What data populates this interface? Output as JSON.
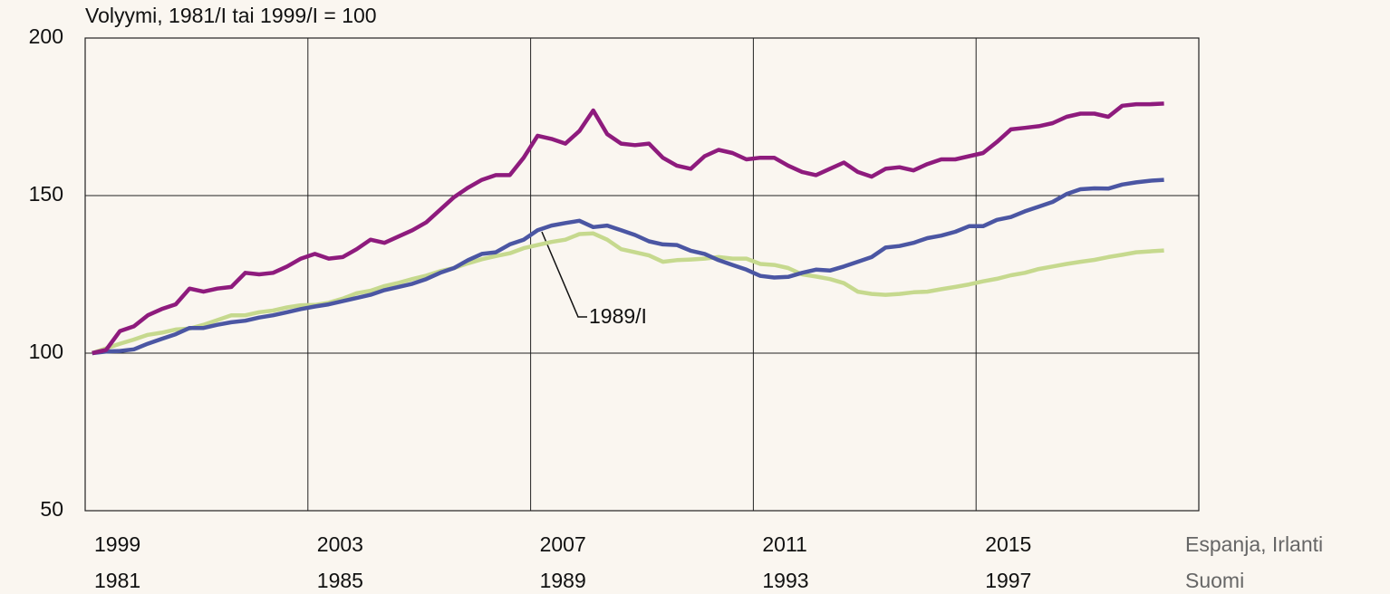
{
  "chart_data": {
    "type": "line",
    "title": "Volyymi, 1981/I tai 1999/I = 100",
    "annotation": "1989/I",
    "xlabel": "Espanja, Irlanti",
    "x2label": "Suomi",
    "x": [
      0,
      1,
      2,
      3,
      4,
      5,
      6,
      7,
      8,
      9,
      10,
      11,
      12,
      13,
      14,
      15,
      16,
      17,
      18,
      19,
      20,
      21,
      22,
      23,
      24,
      25,
      26,
      27,
      28,
      29,
      30,
      31,
      32,
      33,
      34,
      35,
      36,
      37,
      38,
      39,
      40,
      41,
      42,
      43,
      44,
      45,
      46,
      47,
      48,
      49,
      50,
      51,
      52,
      53,
      54,
      55,
      56,
      57,
      58,
      59,
      60,
      61,
      62,
      63,
      64,
      65,
      66,
      67,
      68,
      69,
      70,
      71,
      72,
      73,
      74,
      75,
      76,
      77
    ],
    "xlim": [
      -0.5,
      79.5
    ],
    "xticks": [
      {
        "value": -0.5,
        "label": "1999"
      },
      {
        "value": 15.5,
        "label": "2003"
      },
      {
        "value": 31.5,
        "label": "2007"
      },
      {
        "value": 47.5,
        "label": "2011"
      },
      {
        "value": 63.5,
        "label": "2015"
      }
    ],
    "x2ticks": [
      {
        "value": -0.5,
        "label": "1981"
      },
      {
        "value": 15.5,
        "label": "1985"
      },
      {
        "value": 31.5,
        "label": "1989"
      },
      {
        "value": 47.5,
        "label": "1993"
      },
      {
        "value": 63.5,
        "label": "1997"
      }
    ],
    "ylim": [
      50,
      200
    ],
    "yticks": [
      50,
      100,
      150,
      200
    ],
    "grid": true,
    "series": [
      {
        "color": "#8e1b7d",
        "values": [
          100,
          101,
          107,
          108.5,
          112,
          114,
          115.5,
          120.5,
          119.5,
          120.5,
          121,
          125.5,
          125,
          125.5,
          127.5,
          130,
          131.5,
          130,
          130.5,
          133,
          136,
          135,
          137,
          139,
          141.5,
          145.5,
          149.5,
          152.5,
          155,
          156.5,
          156.5,
          162,
          169,
          168,
          166.5,
          170.5,
          177,
          169.5,
          166.5,
          166,
          166.5,
          162,
          159.5,
          158.5,
          162.5,
          164.5,
          163.5,
          161.5,
          162,
          162,
          159.5,
          157.5,
          156.5,
          158.5,
          160.5,
          157.5,
          156,
          158.5,
          159,
          158,
          160,
          161.5,
          161.5,
          162.5,
          163.5,
          167,
          171,
          171.5,
          172,
          173,
          175,
          176,
          176,
          175,
          178.5,
          179,
          179,
          179.2
        ]
      },
      {
        "color": "#4b56a3",
        "values": [
          100,
          100.5,
          100.7,
          101.2,
          103,
          104.5,
          106,
          108,
          108,
          109,
          109.8,
          110.3,
          111.3,
          112,
          113,
          114,
          114.8,
          115.5,
          116.5,
          117.5,
          118.5,
          120,
          121,
          122,
          123.5,
          125.5,
          127,
          129.5,
          131.5,
          132,
          134.5,
          136,
          139,
          140.5,
          141.3,
          142,
          140,
          140.5,
          139,
          137.5,
          135.5,
          134.5,
          134.3,
          132.5,
          131.5,
          129.5,
          128,
          126.5,
          124.5,
          124,
          124.2,
          125.5,
          126.5,
          126.2,
          127.5,
          129,
          130.5,
          133.5,
          134,
          135,
          136.5,
          137.3,
          138.5,
          140.3,
          140.3,
          142.3,
          143.2,
          145,
          146.5,
          148,
          150.5,
          152,
          152.3,
          152.2,
          153.5,
          154.2,
          154.7,
          155
        ]
      },
      {
        "color": "#c6d98e",
        "values": [
          100,
          101.5,
          103,
          104.3,
          105.8,
          106.5,
          107.5,
          107.8,
          109,
          110.5,
          112,
          112,
          113,
          113.5,
          114.5,
          115.2,
          115.3,
          116,
          117.3,
          119,
          119.8,
          121.3,
          122.3,
          123.5,
          124.6,
          126,
          127,
          128.5,
          129.8,
          130.8,
          131.7,
          133.3,
          134.3,
          135.3,
          136,
          137.8,
          138,
          136,
          133,
          132,
          131,
          129,
          129.5,
          129.7,
          130,
          130.5,
          130,
          130,
          128.3,
          128,
          127,
          125,
          124.3,
          123.5,
          122.2,
          119.5,
          118.8,
          118.5,
          118.8,
          119.3,
          119.5,
          120.3,
          121,
          121.8,
          122.8,
          123.6,
          124.7,
          125.5,
          126.7,
          127.5,
          128.3,
          129,
          129.6,
          130.5,
          131.2,
          132,
          132.3,
          132.6
        ]
      }
    ]
  }
}
